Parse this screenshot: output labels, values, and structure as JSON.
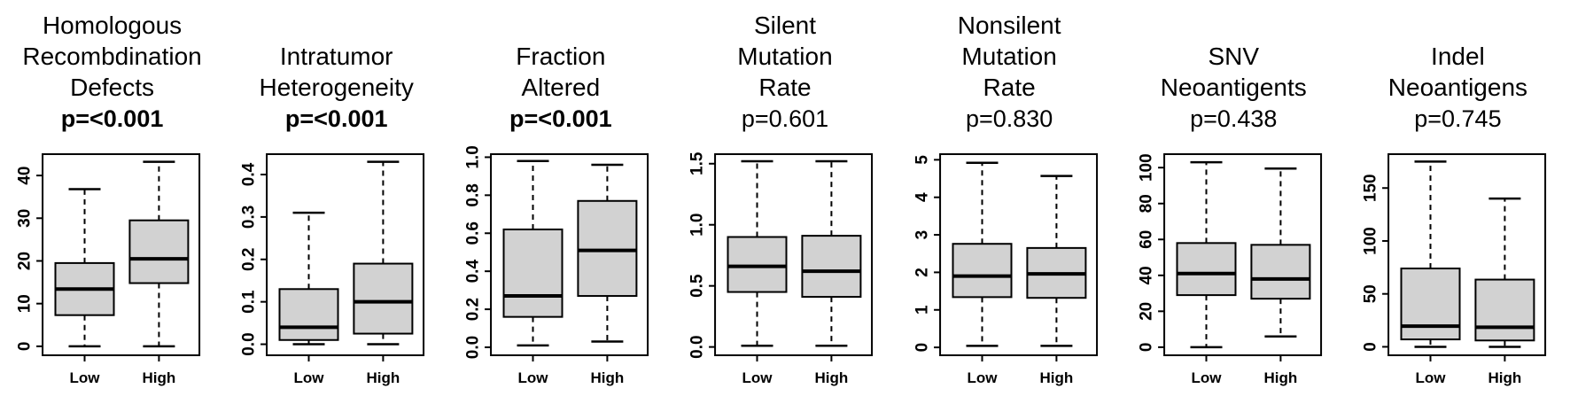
{
  "figure": {
    "description": "Row of seven boxplot panels comparing Low vs High groups",
    "background": "#ffffff"
  },
  "colors": {
    "box_fill": "#d2d2d2",
    "line": "#000000",
    "text": "#000000",
    "background": "#ffffff"
  },
  "chart_data": [
    {
      "type": "boxplot",
      "title": "Homologous Recombdination Defects",
      "title_lines": [
        "Homologous",
        "Recombdination",
        "Defects"
      ],
      "p_label": "p=<0.001",
      "p_bold": true,
      "categories": [
        "Low",
        "High"
      ],
      "ylim": [
        -2.1,
        45
      ],
      "yticks": [
        {
          "v": 0,
          "label": "0"
        },
        {
          "v": 10,
          "label": "10"
        },
        {
          "v": 20,
          "label": "20"
        },
        {
          "v": 30,
          "label": "30"
        },
        {
          "v": 40,
          "label": "40"
        }
      ],
      "series": [
        {
          "name": "Low",
          "whisker_low": 0,
          "q1": 7.3,
          "median": 13.4,
          "q3": 19.5,
          "whisker_high": 36.8
        },
        {
          "name": "High",
          "whisker_low": 0,
          "q1": 14.8,
          "median": 20.5,
          "q3": 29.5,
          "whisker_high": 43.2
        }
      ]
    },
    {
      "type": "boxplot",
      "title": "Intratumor Heterogeneity",
      "title_lines": [
        "Intratumor",
        "Heterogeneity"
      ],
      "p_label": "p=<0.001",
      "p_bold": true,
      "categories": [
        "Low",
        "High"
      ],
      "ylim": [
        -0.026,
        0.448
      ],
      "yticks": [
        {
          "v": 0.0,
          "label": "0.0"
        },
        {
          "v": 0.1,
          "label": "0.1"
        },
        {
          "v": 0.2,
          "label": "0.2"
        },
        {
          "v": 0.3,
          "label": "0.3"
        },
        {
          "v": 0.4,
          "label": "0.4"
        }
      ],
      "series": [
        {
          "name": "Low",
          "whisker_low": 0,
          "q1": 0.01,
          "median": 0.04,
          "q3": 0.13,
          "whisker_high": 0.31
        },
        {
          "name": "High",
          "whisker_low": 0,
          "q1": 0.025,
          "median": 0.1,
          "q3": 0.19,
          "whisker_high": 0.43
        }
      ]
    },
    {
      "type": "boxplot",
      "title": "Fraction Altered",
      "title_lines": [
        "Fraction",
        "Altered"
      ],
      "p_label": "p=<0.001",
      "p_bold": true,
      "categories": [
        "Low",
        "High"
      ],
      "ylim": [
        -0.042,
        1.016
      ],
      "yticks": [
        {
          "v": 0.0,
          "label": "0.0"
        },
        {
          "v": 0.2,
          "label": "0.2"
        },
        {
          "v": 0.4,
          "label": "0.4"
        },
        {
          "v": 0.6,
          "label": "0.6"
        },
        {
          "v": 0.8,
          "label": "0.8"
        },
        {
          "v": 1.0,
          "label": "1.0"
        }
      ],
      "series": [
        {
          "name": "Low",
          "whisker_low": 0.01,
          "q1": 0.16,
          "median": 0.27,
          "q3": 0.62,
          "whisker_high": 0.98
        },
        {
          "name": "High",
          "whisker_low": 0.03,
          "q1": 0.27,
          "median": 0.51,
          "q3": 0.77,
          "whisker_high": 0.96
        }
      ]
    },
    {
      "type": "boxplot",
      "title": "Silent Mutation Rate",
      "title_lines": [
        "Silent",
        "Mutation",
        "Rate"
      ],
      "p_label": "p=0.601",
      "p_bold": false,
      "categories": [
        "Low",
        "High"
      ],
      "ylim": [
        -0.068,
        1.578
      ],
      "yticks": [
        {
          "v": 0.0,
          "label": "0.0"
        },
        {
          "v": 0.5,
          "label": "0.5"
        },
        {
          "v": 1.0,
          "label": "1.0"
        },
        {
          "v": 1.5,
          "label": "1.5"
        }
      ],
      "series": [
        {
          "name": "Low",
          "whisker_low": 0.01,
          "q1": 0.45,
          "median": 0.66,
          "q3": 0.9,
          "whisker_high": 1.52
        },
        {
          "name": "High",
          "whisker_low": 0.01,
          "q1": 0.41,
          "median": 0.62,
          "q3": 0.91,
          "whisker_high": 1.52
        }
      ]
    },
    {
      "type": "boxplot",
      "title": "Nonsilent Mutation Rate",
      "title_lines": [
        "Nonsilent",
        "Mutation",
        "Rate"
      ],
      "p_label": "p=0.830",
      "p_bold": false,
      "categories": [
        "Low",
        "High"
      ],
      "ylim": [
        -0.21,
        5.15
      ],
      "yticks": [
        {
          "v": 0,
          "label": "0"
        },
        {
          "v": 1,
          "label": "1"
        },
        {
          "v": 2,
          "label": "2"
        },
        {
          "v": 3,
          "label": "3"
        },
        {
          "v": 4,
          "label": "4"
        },
        {
          "v": 5,
          "label": "5"
        }
      ],
      "series": [
        {
          "name": "Low",
          "whisker_low": 0.04,
          "q1": 1.34,
          "median": 1.9,
          "q3": 2.76,
          "whisker_high": 4.92
        },
        {
          "name": "High",
          "whisker_low": 0.04,
          "q1": 1.32,
          "median": 1.96,
          "q3": 2.65,
          "whisker_high": 4.57
        }
      ]
    },
    {
      "type": "boxplot",
      "title": "SNV Neoantigents",
      "title_lines": [
        "SNV",
        "Neoantigents"
      ],
      "p_label": "p=0.438",
      "p_bold": false,
      "categories": [
        "Low",
        "High"
      ],
      "ylim": [
        -4.5,
        107.5
      ],
      "yticks": [
        {
          "v": 0,
          "label": "0"
        },
        {
          "v": 20,
          "label": "20"
        },
        {
          "v": 40,
          "label": "40"
        },
        {
          "v": 60,
          "label": "60"
        },
        {
          "v": 80,
          "label": "80"
        },
        {
          "v": 100,
          "label": "100"
        }
      ],
      "series": [
        {
          "name": "Low",
          "whisker_low": 0,
          "q1": 29,
          "median": 41,
          "q3": 58,
          "whisker_high": 103
        },
        {
          "name": "High",
          "whisker_low": 6,
          "q1": 27,
          "median": 38,
          "q3": 57,
          "whisker_high": 99.5
        }
      ]
    },
    {
      "type": "boxplot",
      "title": "Indel Neoantigens",
      "title_lines": [
        "Indel",
        "Neoantigens"
      ],
      "p_label": "p=0.745",
      "p_bold": false,
      "categories": [
        "Low",
        "High"
      ],
      "ylim": [
        -8,
        182
      ],
      "yticks": [
        {
          "v": 0,
          "label": "0"
        },
        {
          "v": 50,
          "label": "50"
        },
        {
          "v": 100,
          "label": "100"
        },
        {
          "v": 150,
          "label": "150"
        }
      ],
      "series": [
        {
          "name": "Low",
          "whisker_low": 0,
          "q1": 7,
          "median": 19.5,
          "q3": 74,
          "whisker_high": 175
        },
        {
          "name": "High",
          "whisker_low": 0,
          "q1": 6,
          "median": 18.5,
          "q3": 63.5,
          "whisker_high": 140
        }
      ]
    }
  ]
}
